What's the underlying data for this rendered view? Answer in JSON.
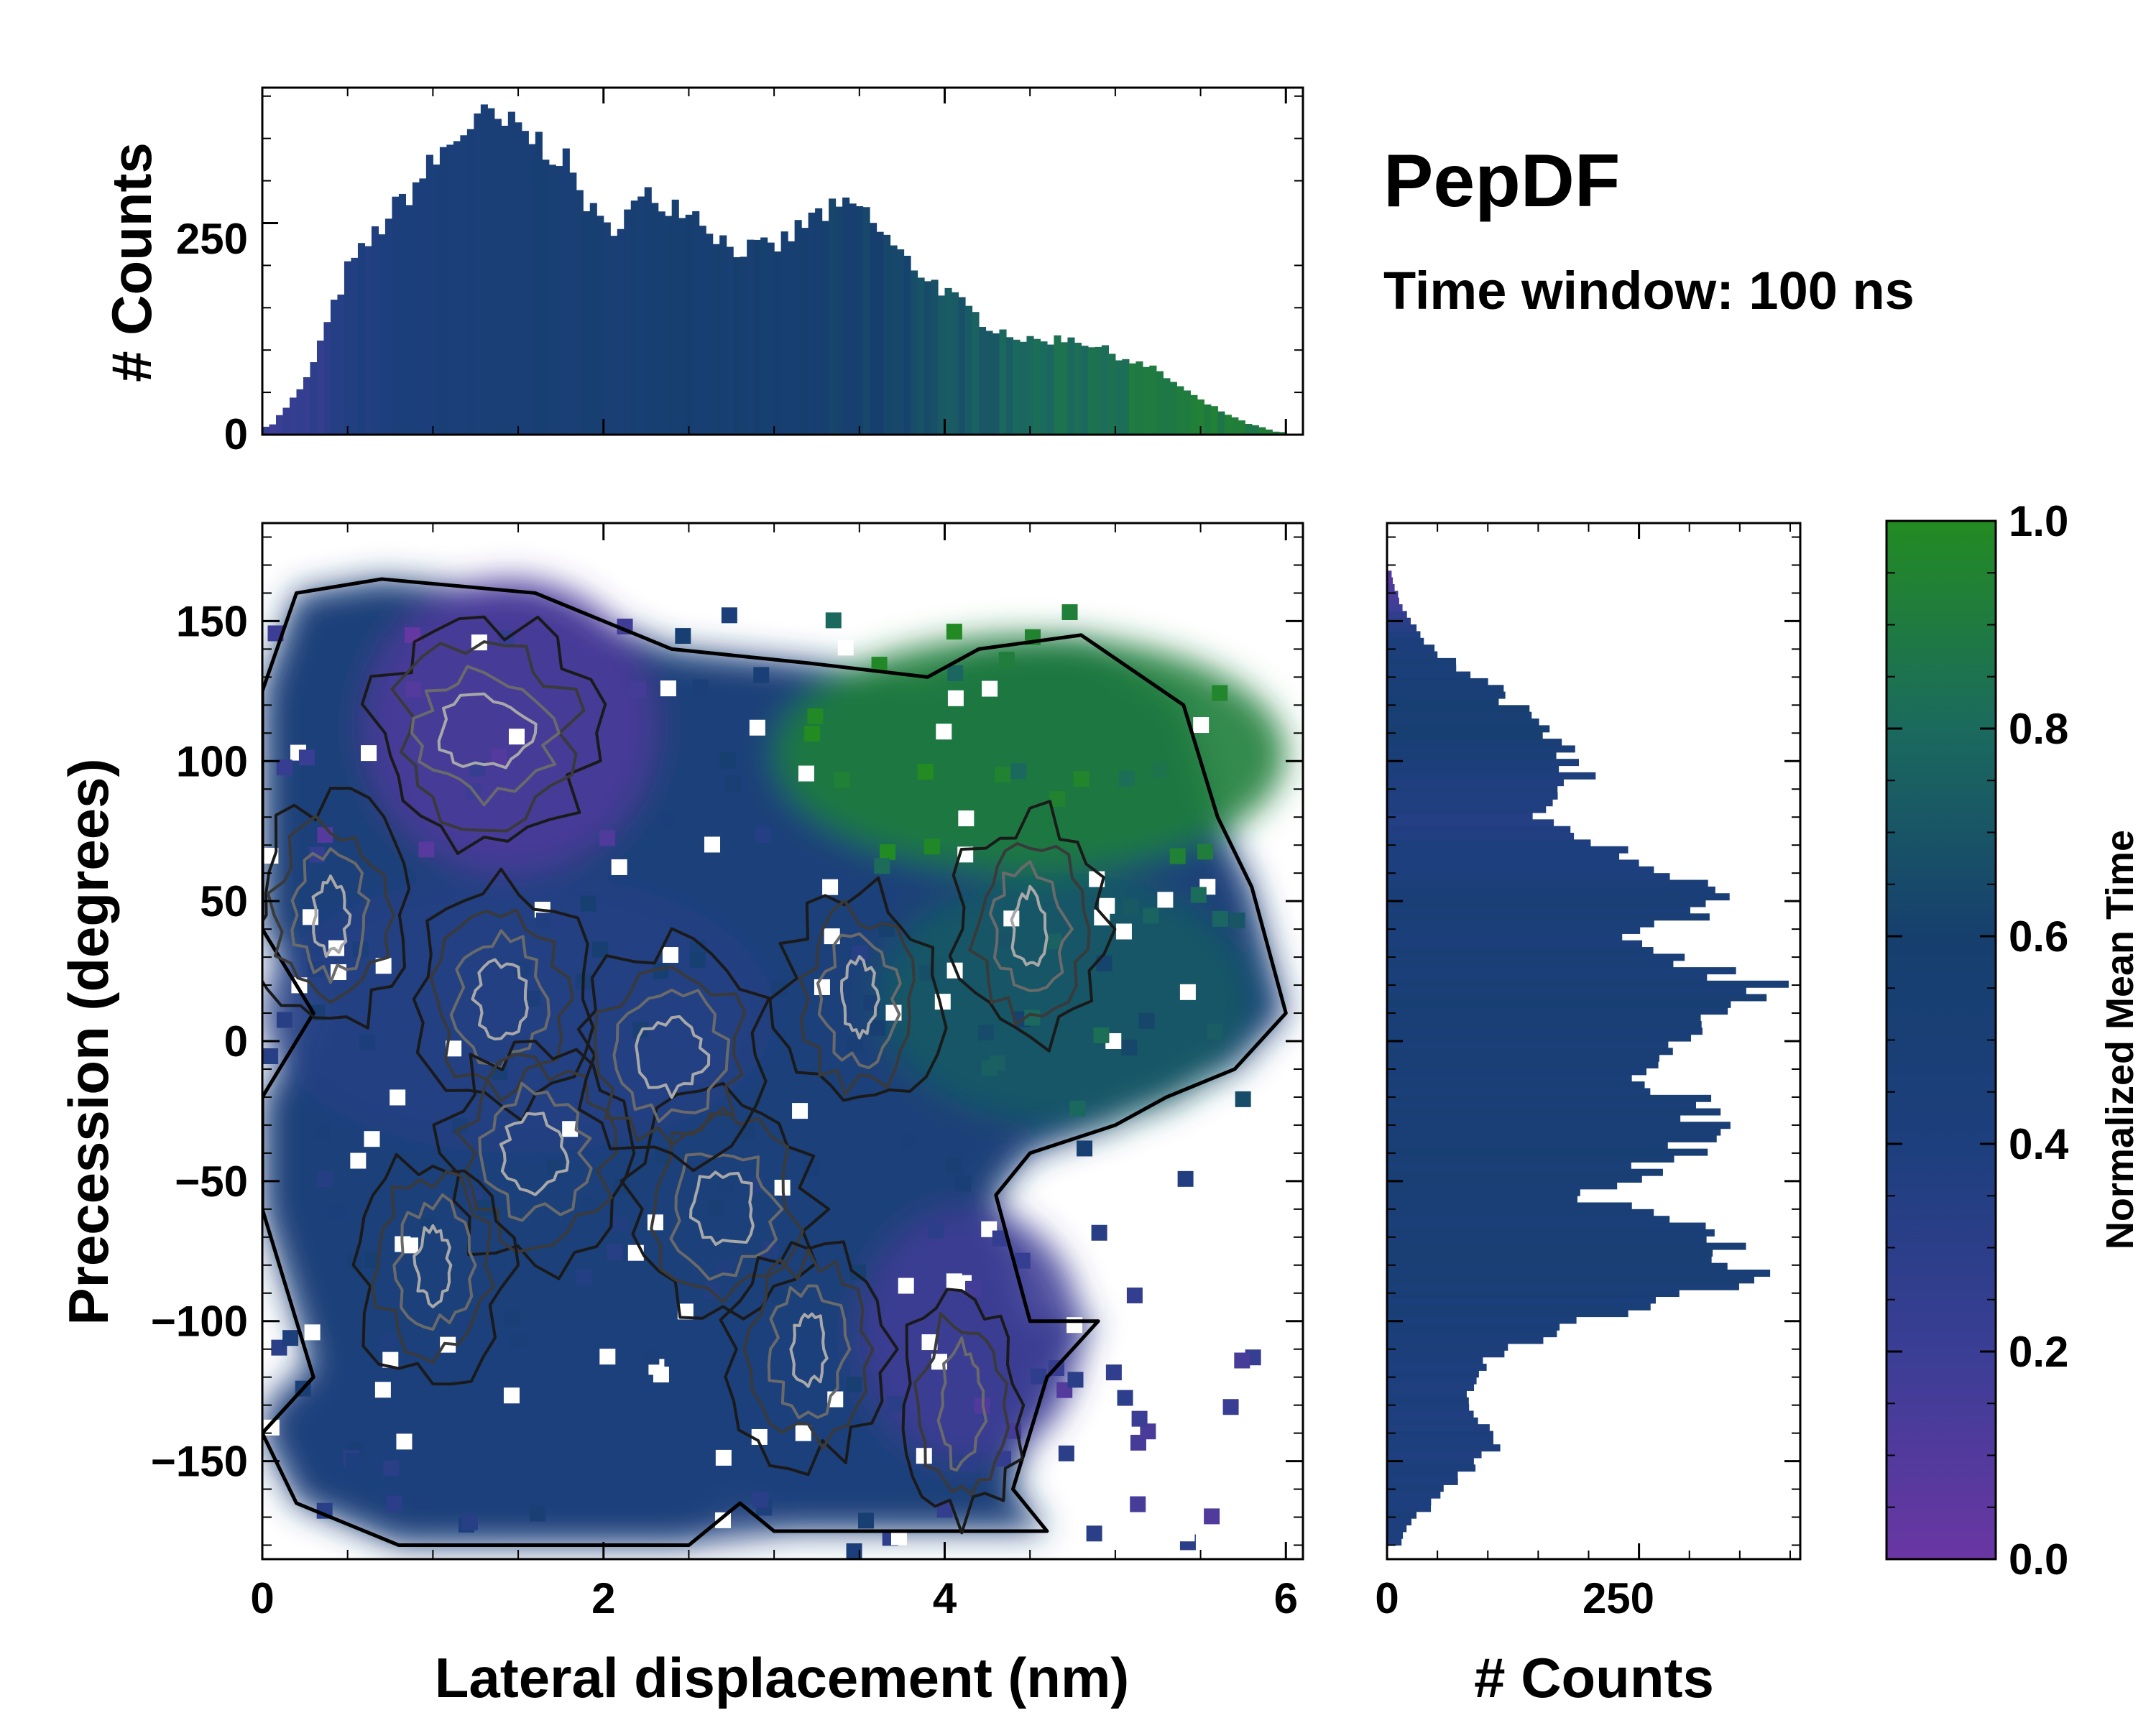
{
  "chart_data": [
    {
      "type": "bar",
      "panel": "top-marginal-histogram",
      "xlabel": "",
      "ylabel": "# Counts",
      "xlim": [
        0,
        6.1
      ],
      "ylim": [
        0,
        410
      ],
      "yticks": [
        0,
        250
      ],
      "bin_centers": [
        0.05,
        0.25,
        0.5,
        0.75,
        1.0,
        1.25,
        1.5,
        1.75,
        2.0,
        2.25,
        2.5,
        2.75,
        3.0,
        3.25,
        3.5,
        3.75,
        4.0,
        4.25,
        4.5,
        4.75,
        5.0,
        5.25,
        5.5,
        5.75,
        5.95
      ],
      "counts": [
        10,
        60,
        195,
        260,
        320,
        375,
        360,
        330,
        240,
        280,
        270,
        220,
        220,
        260,
        270,
        210,
        170,
        130,
        110,
        115,
        95,
        75,
        40,
        15,
        3
      ],
      "mean_time": [
        0.2,
        0.25,
        0.35,
        0.42,
        0.46,
        0.48,
        0.5,
        0.52,
        0.52,
        0.55,
        0.55,
        0.56,
        0.57,
        0.58,
        0.6,
        0.65,
        0.7,
        0.74,
        0.8,
        0.82,
        0.86,
        0.88,
        0.9,
        0.9,
        0.9
      ]
    },
    {
      "type": "heatmap",
      "panel": "main-2d-distribution",
      "xlabel": "Lateral displacement (nm)",
      "ylabel": "Precession (degrees)",
      "xlim": [
        0,
        6.1
      ],
      "ylim": [
        -185,
        185
      ],
      "xticks": [
        0,
        2,
        4,
        6
      ],
      "yticks": [
        150,
        100,
        50,
        0,
        -50,
        -100,
        -150
      ],
      "ytick_labels": [
        "150",
        "100",
        "50",
        "0",
        "−50",
        "−100",
        "−150"
      ],
      "color_meaning": "Normalized Mean Time",
      "regions": [
        {
          "x_range": [
            0.6,
            2.3
          ],
          "y_range": [
            60,
            165
          ],
          "mean_time": 0.12
        },
        {
          "x_range": [
            0.0,
            3.0
          ],
          "y_range": [
            -40,
            60
          ],
          "mean_time": 0.35
        },
        {
          "x_range": [
            3.0,
            6.0
          ],
          "y_range": [
            60,
            145
          ],
          "mean_time": 0.92
        },
        {
          "x_range": [
            3.6,
            5.8
          ],
          "y_range": [
            -30,
            60
          ],
          "mean_time": 0.72
        },
        {
          "x_range": [
            0.0,
            4.2
          ],
          "y_range": [
            -180,
            -95
          ],
          "mean_time": 0.42
        },
        {
          "x_range": [
            3.5,
            4.8
          ],
          "y_range": [
            -150,
            -60
          ],
          "mean_time": 0.18
        }
      ],
      "overlay": "density contour lines (grey to black)"
    },
    {
      "type": "bar",
      "orientation": "horizontal",
      "panel": "right-marginal-histogram",
      "xlabel": "# Counts",
      "xlim": [
        0,
        410
      ],
      "xticks": [
        0,
        250
      ],
      "bin_centers": [
        -175,
        -160,
        -145,
        -130,
        -115,
        -100,
        -85,
        -70,
        -55,
        -40,
        -25,
        -10,
        5,
        20,
        35,
        50,
        65,
        80,
        95,
        110,
        125,
        140,
        155,
        165
      ],
      "counts": [
        15,
        60,
        110,
        75,
        95,
        190,
        350,
        330,
        190,
        300,
        320,
        250,
        290,
        370,
        240,
        330,
        240,
        150,
        190,
        160,
        110,
        45,
        15,
        5
      ],
      "mean_time": [
        0.4,
        0.42,
        0.4,
        0.4,
        0.42,
        0.45,
        0.5,
        0.5,
        0.48,
        0.5,
        0.5,
        0.48,
        0.5,
        0.5,
        0.45,
        0.5,
        0.4,
        0.35,
        0.4,
        0.55,
        0.5,
        0.45,
        0.2,
        0.1
      ]
    }
  ],
  "colorbar": {
    "label": "Normalized Mean Time",
    "ticks": [
      "0.0",
      "0.2",
      "0.4",
      "0.6",
      "0.8",
      "1.0"
    ],
    "colors": [
      "#6a36a3",
      "#3a3e95",
      "#1d3f7d",
      "#163f6e",
      "#1b6a5e",
      "#238b22"
    ]
  },
  "annotation": {
    "title": "PepDF",
    "subtitle": "Time window: 100 ns"
  },
  "labels": {
    "top_ylabel": "# Counts",
    "main_xlabel": "Lateral displacement (nm)",
    "main_ylabel": "Precession (degrees)",
    "right_xlabel": "# Counts",
    "top_ytick_0": "0",
    "top_ytick_250": "250",
    "right_xtick_0": "0",
    "right_xtick_250": "250"
  }
}
